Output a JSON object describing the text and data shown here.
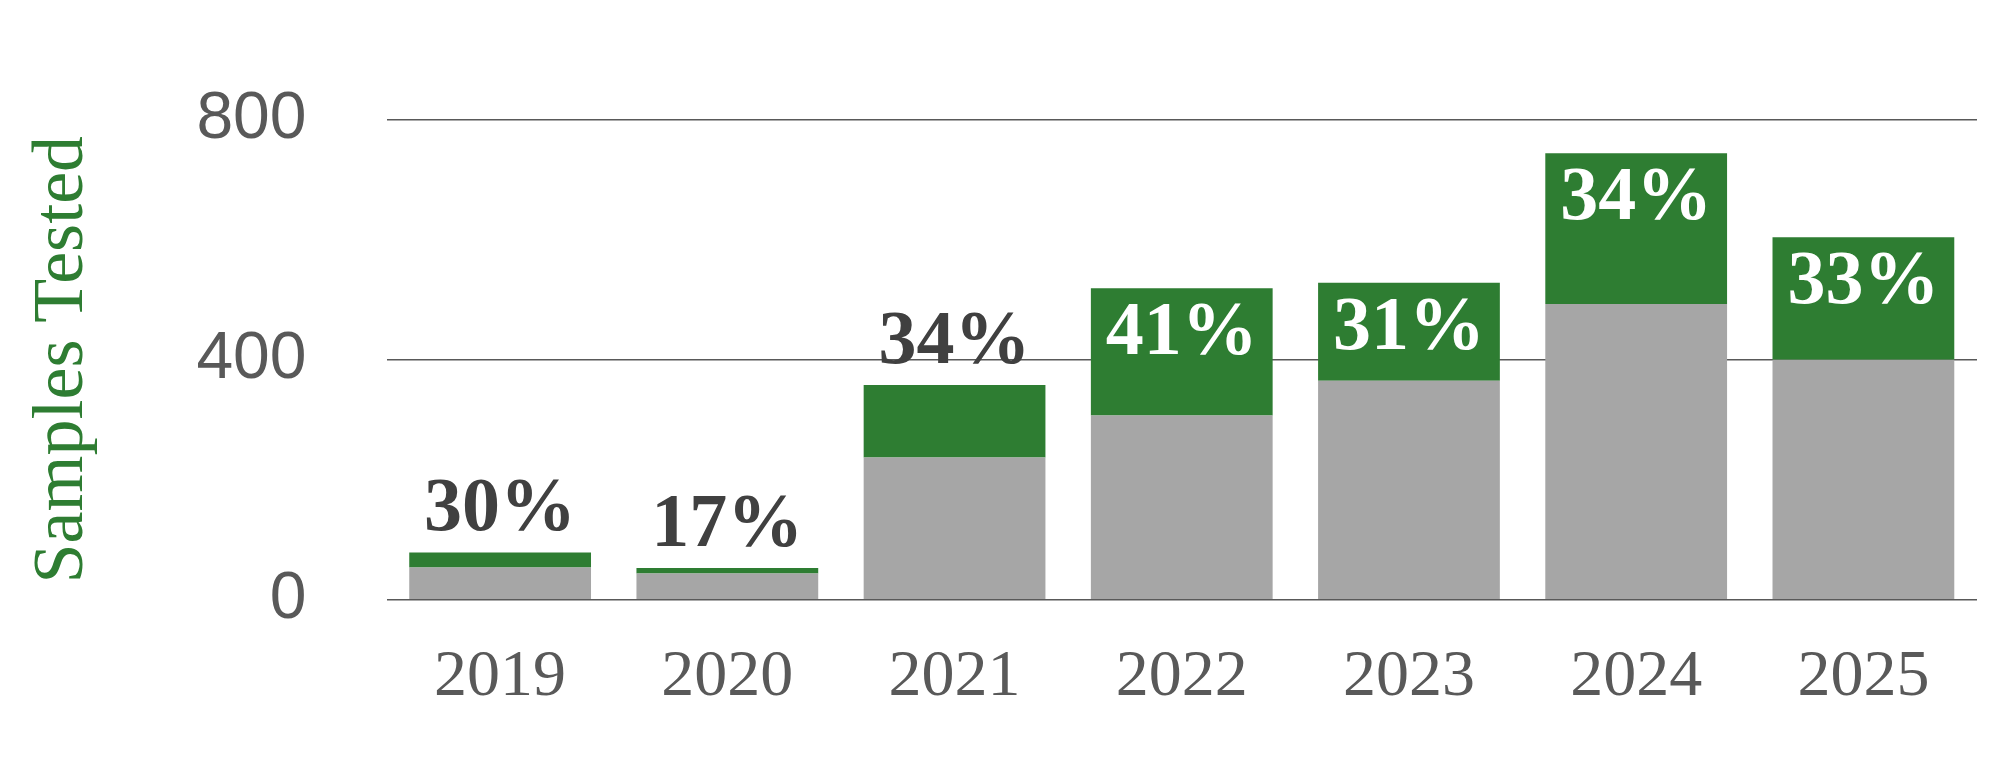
{
  "chart_data": {
    "type": "bar",
    "ylabel": "Samples Tested",
    "categories": [
      "2019",
      "2020",
      "2021",
      "2022",
      "2023",
      "2024",
      "2025"
    ],
    "stacked": true,
    "ylim": [
      0,
      800
    ],
    "yticks": [
      0,
      400,
      800
    ],
    "grid": "y",
    "legend": false,
    "series": [
      {
        "color": "#a6a6a6",
        "values": [
          54,
          44,
          237,
          307,
          365,
          493,
          400
        ]
      },
      {
        "color": "#2e7d32",
        "values": [
          25,
          9,
          121,
          212,
          163,
          251,
          204
        ]
      }
    ],
    "annotations": [
      {
        "text": "30%",
        "x": "2019",
        "y": 79
      },
      {
        "text": "17%",
        "x": "2020",
        "y": 53
      },
      {
        "text": "34%",
        "x": "2021",
        "y": 358
      },
      {
        "text": "41%",
        "x": "2022",
        "y": 519
      },
      {
        "text": "31%",
        "x": "2023",
        "y": 528
      },
      {
        "text": "34%",
        "x": "2024",
        "y": 744
      },
      {
        "text": "33%",
        "x": "2025",
        "y": 604
      }
    ]
  }
}
